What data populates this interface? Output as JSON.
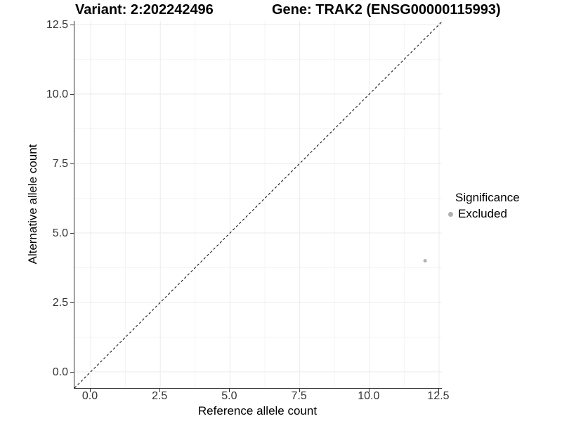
{
  "header": {
    "variant_title": "Variant: 2:202242496",
    "gene_title": "Gene: TRAK2 (ENSG00000115993)"
  },
  "axes": {
    "x": {
      "label": "Reference allele count"
    },
    "y": {
      "label": "Alternative allele count"
    }
  },
  "legend": {
    "title": "Significance",
    "items": [
      {
        "label": "Excluded",
        "color": "#b0b0b0"
      }
    ]
  },
  "chart_data": {
    "type": "scatter",
    "title": "Variant: 2:202242496   Gene: TRAK2 (ENSG00000115993)",
    "xlabel": "Reference allele count",
    "ylabel": "Alternative allele count",
    "xlim": [
      -0.6,
      12.6
    ],
    "ylim": [
      -0.6,
      12.6
    ],
    "xticks": [
      0,
      2.5,
      5,
      7.5,
      10,
      12.5
    ],
    "yticks": [
      0,
      2.5,
      5,
      7.5,
      10,
      12.5
    ],
    "xtick_labels": [
      "0.0",
      "2.5",
      "5.0",
      "7.5",
      "10.0",
      "12.5"
    ],
    "ytick_labels": [
      "0.0",
      "2.5",
      "5.0",
      "7.5",
      "10.0",
      "12.5"
    ],
    "minor_ticks": [
      1.25,
      3.75,
      6.25,
      8.75,
      11.25
    ],
    "grid": true,
    "legend_position": "right",
    "series": [
      {
        "name": "Excluded",
        "color": "#b0b0b0",
        "point_radius": 2.5,
        "points": [
          {
            "x": 12,
            "y": 4
          }
        ]
      }
    ],
    "reference_line": {
      "type": "identity",
      "equation": "y = x",
      "style": "dashed",
      "color": "#000000",
      "dash": "3.5 3"
    }
  },
  "colors": {
    "grid_major": "#ebebeb",
    "grid_minor": "#f4f4f4",
    "axis_line": "#333333",
    "tick_text": "#333333",
    "title_text": "#000000",
    "background": "#ffffff"
  }
}
